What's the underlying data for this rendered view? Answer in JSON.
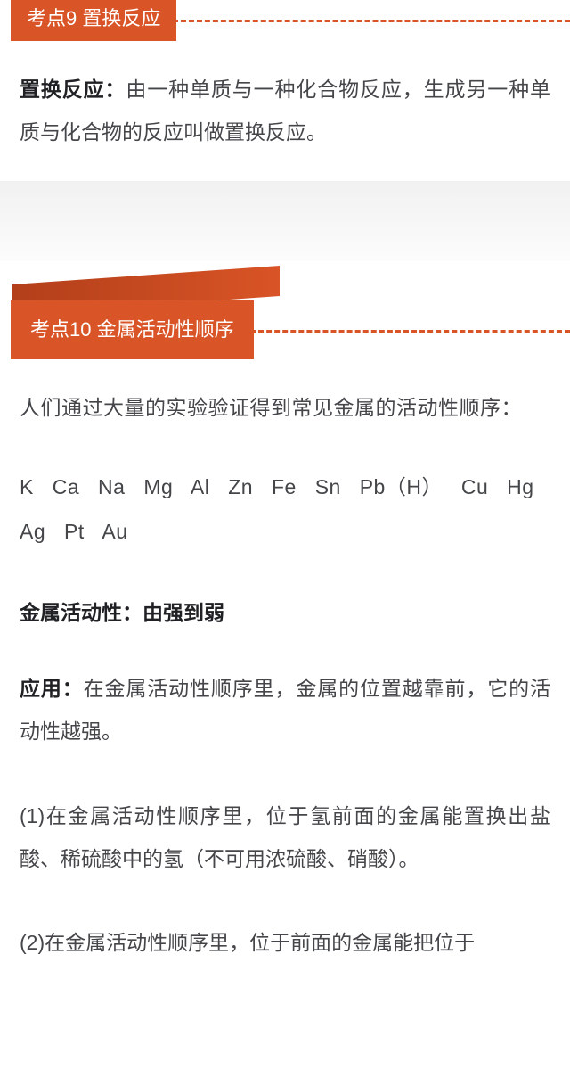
{
  "section9": {
    "tag": "考点9 置换反应",
    "term_label": "置换反应：",
    "term_body": "由一种单质与一种化合物反应，生成另一种单质与化合物的反应叫做置换反应。"
  },
  "section10": {
    "tag": "考点10 金属活动性顺序",
    "intro": "人们通过大量的实验验证得到常见金属的活动性顺序：",
    "elements": "K Ca Na Mg Al Zn Fe Sn Pb（H） Cu Hg Ag Pt Au",
    "strength_label": "金属活动性：",
    "strength_value": "由强到弱",
    "app_label": "应用：",
    "app_body": "在金属活动性顺序里，金属的位置越靠前，它的活动性越强。",
    "p1": "(1)在金属活动性顺序里，位于氢前面的金属能置换出盐酸、稀硫酸中的氢（不可用浓硫酸、硝酸）。",
    "p2": "(2)在金属活动性顺序里，位于前面的金属能把位于"
  },
  "colors": {
    "accent": "#d95426",
    "banner_dark": "#b23f1a",
    "text": "#44464a",
    "bold_text": "#202124",
    "gap_top": "#f1f1f1",
    "bg": "#ffffff"
  },
  "fonts": {
    "body_size": 23,
    "tag_size": 22,
    "line_height": 2.1
  }
}
